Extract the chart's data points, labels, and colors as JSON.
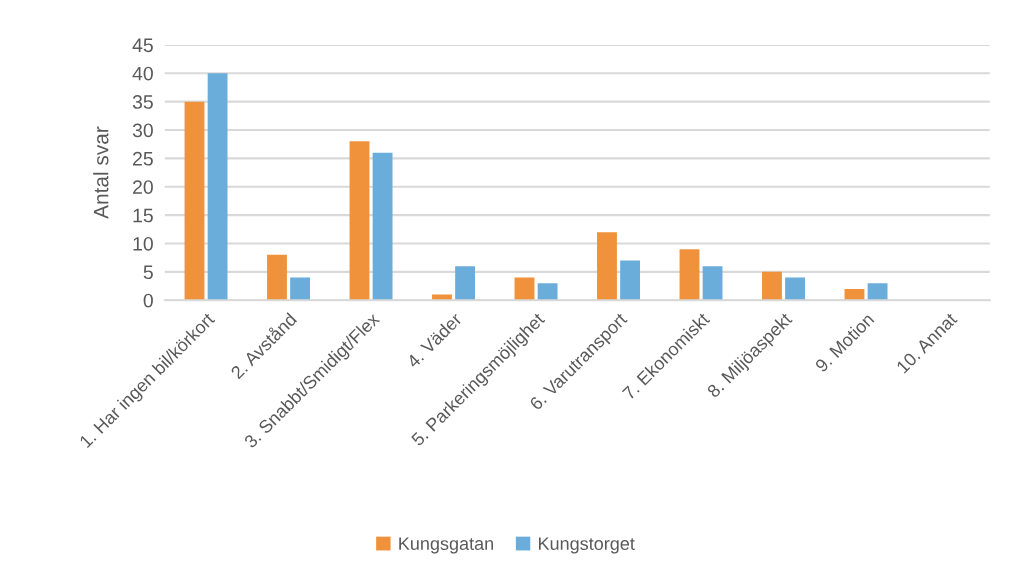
{
  "chart_data": {
    "type": "bar",
    "ylabel": "Antal svar",
    "categories": [
      "1. Har ingen bil/körkort",
      "2. Avstånd",
      "3. Snabbt/Smidigt/Flex",
      "4. Väder",
      "5. Parkeringsmöjlighet",
      "6. Varutransport",
      "7. Ekonomiskt",
      "8. Miljöaspekt",
      "9. Motion",
      "10. Annat"
    ],
    "series": [
      {
        "name": "Kungsgatan",
        "color": "#f0923b",
        "values": [
          35,
          8,
          28,
          1,
          4,
          12,
          9,
          5,
          2,
          0
        ]
      },
      {
        "name": "Kungstorget",
        "color": "#6badda",
        "values": [
          40,
          4,
          26,
          6,
          3,
          7,
          6,
          4,
          3,
          0
        ]
      }
    ],
    "ylim": [
      0,
      45
    ],
    "yticks": [
      0,
      5,
      10,
      15,
      20,
      25,
      30,
      35,
      40,
      45
    ],
    "grid": "y",
    "legend": "bottom"
  }
}
